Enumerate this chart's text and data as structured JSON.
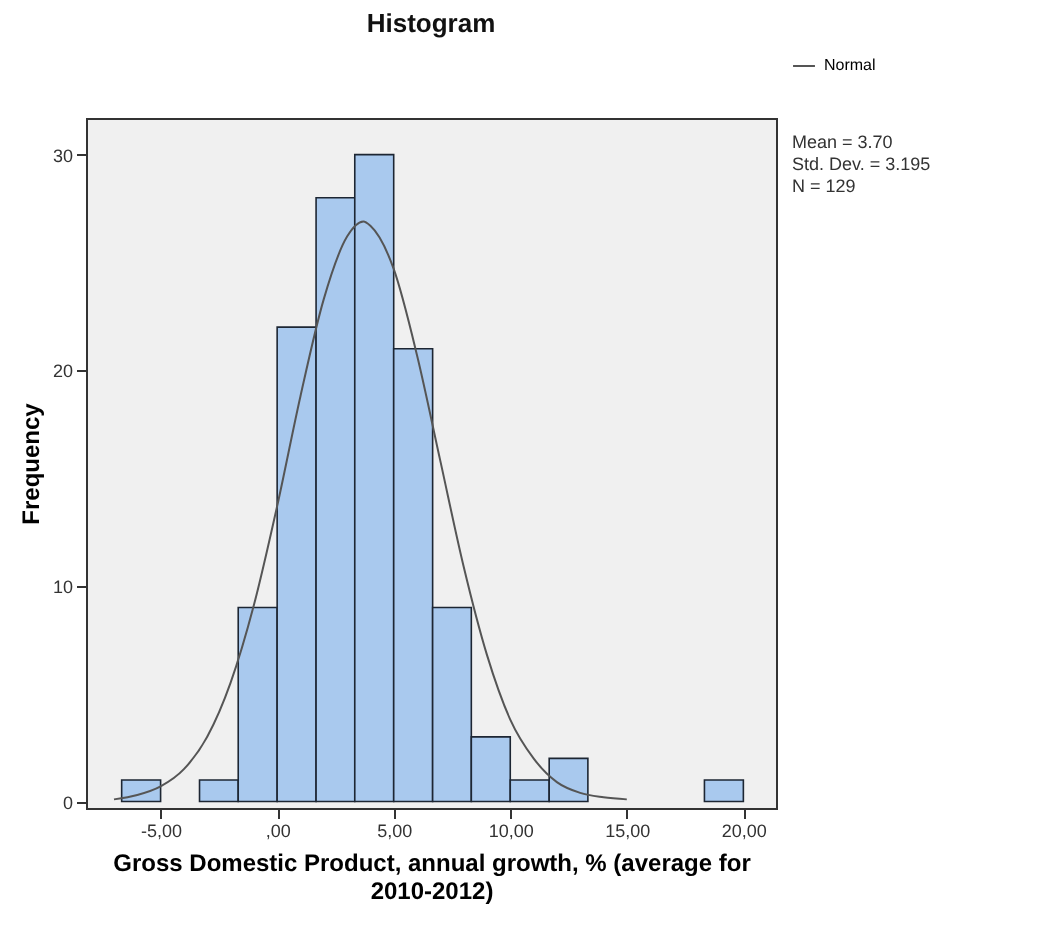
{
  "chart_data": {
    "type": "histogram",
    "title": "Histogram",
    "xlabel": "Gross Domestic Product, annual growth, % (average for 2010-2012)",
    "ylabel": "Frequency",
    "bins": [
      -6.67,
      -5,
      -3.33,
      -1.67,
      0,
      1.67,
      3.33,
      5,
      6.67,
      8.33,
      10,
      11.67,
      13.33,
      15,
      16.67,
      18.33,
      20
    ],
    "values": [
      1,
      0,
      1,
      9,
      22,
      28,
      30,
      21,
      9,
      3,
      1,
      2,
      0,
      0,
      0,
      1
    ],
    "color": "#a9c9ee",
    "series": [
      {
        "type": "line",
        "name": "Normal",
        "color": "#555555",
        "x": [
          -7,
          -6,
          -5,
          -4,
          -3,
          -2,
          -1,
          0,
          1,
          2,
          3,
          3.7,
          4,
          5,
          6,
          7,
          8,
          9,
          10,
          11,
          12,
          13,
          14,
          15
        ],
        "values": [
          0.1,
          0.3,
          0.7,
          1.5,
          3,
          5.5,
          9.1,
          13.7,
          18.8,
          23.3,
          26.2,
          26.9,
          26.7,
          24.7,
          20.7,
          15.8,
          10.9,
          6.8,
          3.8,
          2,
          0.9,
          0.4,
          0.2,
          0.1
        ]
      }
    ],
    "xlim": [
      -8.2,
      21.4
    ],
    "ylim": [
      -0.3,
      31.7
    ],
    "xticks": [
      {
        "value": -5,
        "label": "-5,00"
      },
      {
        "value": 0,
        "label": ",00"
      },
      {
        "value": 5,
        "label": "5,00"
      },
      {
        "value": 10,
        "label": "10,00"
      },
      {
        "value": 15,
        "label": "15,00"
      },
      {
        "value": 20,
        "label": "20,00"
      }
    ],
    "yticks": [
      0,
      10,
      20,
      30
    ],
    "legend": "top right",
    "annotations": [
      "Mean = 3.70",
      "Std. Dev. = 3.195",
      "N = 129"
    ]
  }
}
